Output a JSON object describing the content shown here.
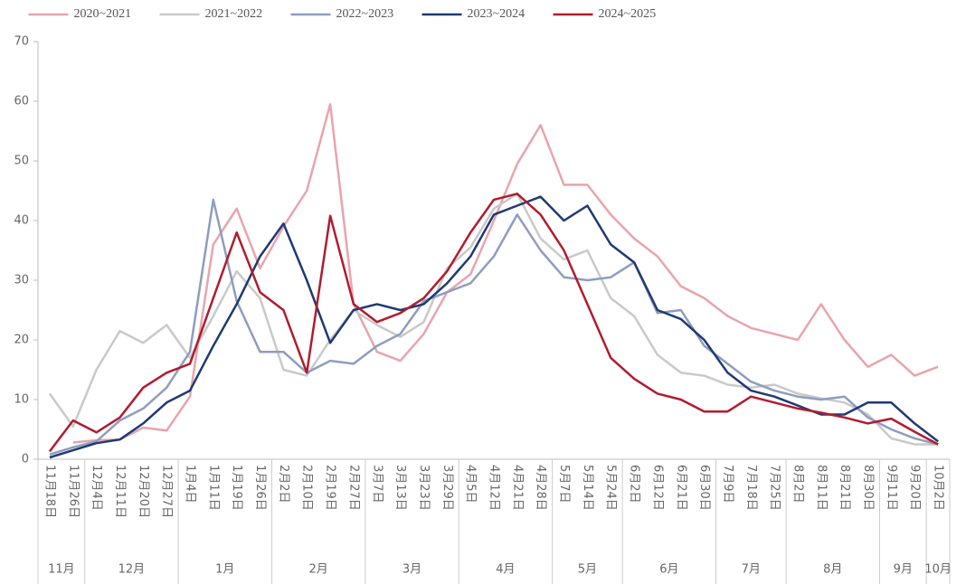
{
  "chart_data": {
    "type": "line",
    "categories": [
      "11月18日",
      "11月26日",
      "12月4日",
      "12月11日",
      "12月20日",
      "12月27日",
      "1月4日",
      "1月11日",
      "1月19日",
      "1月26日",
      "2月2日",
      "2月10日",
      "2月19日",
      "2月27日",
      "3月7日",
      "3月13日",
      "3月23日",
      "3月29日",
      "4月5日",
      "4月12日",
      "4月21日",
      "4月28日",
      "5月7日",
      "5月14日",
      "5月24日",
      "6月2日",
      "6月12日",
      "6月21日",
      "6月30日",
      "7月9日",
      "7月18日",
      "7月25日",
      "8月2日",
      "8月11日",
      "8月21日",
      "8月30日",
      "9月11日",
      "9月20日",
      "10月2日"
    ],
    "month_groups": [
      "11月",
      "12月",
      "1月",
      "2月",
      "3月",
      "4月",
      "5月",
      "6月",
      "7月",
      "8月",
      "9月",
      "10月"
    ],
    "series": [
      {
        "name": "2020~2021",
        "color": "#e8a4ad",
        "values": [
          null,
          2.8,
          3.2,
          3.3,
          5.3,
          4.8,
          10.5,
          36,
          42,
          32,
          39,
          45,
          59.5,
          26,
          18,
          16.5,
          21,
          28,
          31,
          40,
          49.5,
          56,
          46,
          46,
          41,
          37,
          34,
          29,
          27,
          24,
          22,
          21,
          20,
          26,
          20,
          15.5,
          17.5,
          14,
          15.5
        ]
      },
      {
        "name": "2021~2022",
        "color": "#c9c9c9",
        "values": [
          11,
          5.5,
          15,
          21.5,
          19.5,
          22.5,
          17,
          24,
          31.5,
          27,
          15,
          14,
          20,
          25,
          22.5,
          20.5,
          23,
          32,
          35.5,
          42,
          44.5,
          37,
          33.5,
          35,
          27,
          24,
          17.5,
          14.5,
          14,
          12.5,
          12,
          12.5,
          11,
          10.2,
          9.5,
          7.5,
          3.5,
          2.5,
          2.5
        ]
      },
      {
        "name": "2022~2023",
        "color": "#8e9dbf",
        "values": [
          0.8,
          2,
          3,
          6.5,
          8.5,
          12,
          18,
          43.5,
          26.5,
          18,
          18,
          14.5,
          16.5,
          16,
          19,
          21,
          26.5,
          28,
          29.5,
          34,
          41,
          35,
          30.5,
          30,
          30.5,
          33,
          24.5,
          25,
          19,
          16,
          13,
          11.5,
          10.5,
          10,
          10.5,
          7,
          5,
          3.5,
          2.5
        ]
      },
      {
        "name": "2023~2024",
        "color": "#1f3a73",
        "values": [
          0.3,
          1.5,
          2.7,
          3.3,
          6,
          9.5,
          11.5,
          19,
          26,
          34,
          39.5,
          30,
          19.5,
          25,
          26,
          25,
          26,
          29.5,
          34,
          41,
          42.5,
          44,
          40,
          42.5,
          36,
          33,
          25,
          23.5,
          20,
          14.5,
          11.5,
          10.5,
          9,
          7.5,
          7.5,
          9.5,
          9.5,
          6,
          3
        ]
      },
      {
        "name": "2024~2025",
        "color": "#b01c2e",
        "values": [
          1.3,
          6.5,
          4.5,
          7,
          12,
          14.5,
          16,
          27,
          38,
          28,
          25,
          14.5,
          40.8,
          26,
          23,
          24.5,
          27,
          31.5,
          38,
          43.5,
          44.5,
          41,
          35,
          26,
          17,
          13.5,
          11,
          10,
          8,
          8,
          10.5,
          9.5,
          8.5,
          7.8,
          7,
          6,
          6.8,
          4.6,
          2.5
        ]
      }
    ],
    "ylim": [
      0,
      70
    ],
    "yticks": [
      0,
      10,
      20,
      30,
      40,
      50,
      60,
      70
    ],
    "grid": false
  }
}
